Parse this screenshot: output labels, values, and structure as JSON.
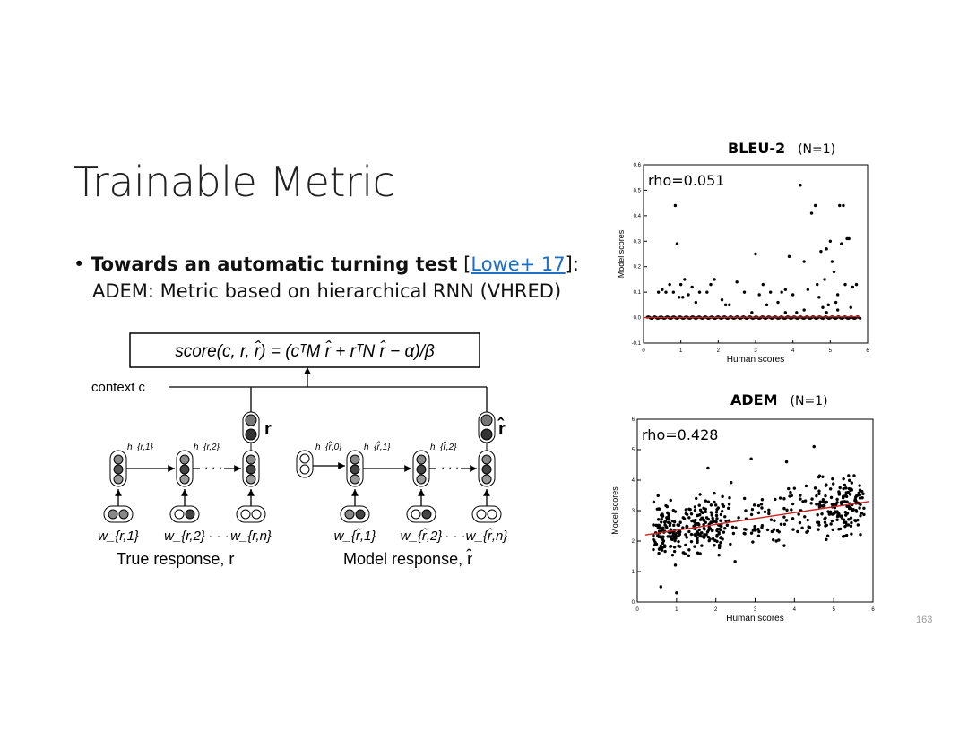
{
  "slide": {
    "title": "Trainable Metric",
    "bullet_bold": "Towards an automatic turning test",
    "bullet_bracket_open": "[",
    "bullet_link": "Lowe+ 17",
    "bullet_bracket_close": "]:",
    "bullet_line2": "ADEM: Metric based on hierarchical RNN (VHRED)",
    "slide_number": "163"
  },
  "diagram": {
    "formula": "score(c, r, r̂) = (cᵀM r̂ + rᵀN r̂ − α)/β",
    "context_label": "context c",
    "r_label": "r",
    "rhat_label": "r̂",
    "h_labels": [
      "h_{r,1}",
      "h_{r,2}",
      "h_{r̂,0}",
      "h_{r̂,1}",
      "h_{r̂,2}"
    ],
    "w_labels": [
      "w_{r,1}",
      "w_{r,2}",
      "w_{r,n}",
      "w_{r̂,1}",
      "w_{r̂,2}",
      "w_{r̂,n}"
    ],
    "true_caption": "True response, r",
    "model_caption": "Model response, r̂"
  },
  "chart_data": [
    {
      "type": "scatter",
      "title": "BLEU-2",
      "subtitle": "(N=1)",
      "annotation": "rho=0.051",
      "xlabel": "Human scores",
      "ylabel": "Model scores",
      "xlim": [
        0,
        6
      ],
      "ylim": [
        -0.1,
        0.6
      ],
      "xticks": [
        0,
        1,
        2,
        3,
        4,
        5,
        6
      ],
      "yticks": [
        -0.1,
        0.0,
        0.1,
        0.2,
        0.3,
        0.4,
        0.5,
        0.6
      ],
      "fit_line": [
        [
          0,
          0.0
        ],
        [
          5.8,
          0.003
        ]
      ],
      "colors": {
        "points": "#000000",
        "fit": "#cc2222"
      },
      "points": [
        [
          0.4,
          0.1
        ],
        [
          0.5,
          0.11
        ],
        [
          0.6,
          0.1
        ],
        [
          0.7,
          0.13
        ],
        [
          0.8,
          0.1
        ],
        [
          0.85,
          0.44
        ],
        [
          0.9,
          0.29
        ],
        [
          0.95,
          0.08
        ],
        [
          1.0,
          0.13
        ],
        [
          1.05,
          0.08
        ],
        [
          1.1,
          0.15
        ],
        [
          1.2,
          0.09
        ],
        [
          1.3,
          0.12
        ],
        [
          1.4,
          0.06
        ],
        [
          1.5,
          0.1
        ],
        [
          1.7,
          0.1
        ],
        [
          1.8,
          0.13
        ],
        [
          1.9,
          0.15
        ],
        [
          2.1,
          0.07
        ],
        [
          2.2,
          0.05
        ],
        [
          2.3,
          0.05
        ],
        [
          2.5,
          0.14
        ],
        [
          2.7,
          0.1
        ],
        [
          3.0,
          0.25
        ],
        [
          3.1,
          0.09
        ],
        [
          3.2,
          0.13
        ],
        [
          3.3,
          0.05
        ],
        [
          3.4,
          0.1
        ],
        [
          3.6,
          0.06
        ],
        [
          3.7,
          0.1
        ],
        [
          3.8,
          0.11
        ],
        [
          3.9,
          0.24
        ],
        [
          4.0,
          0.09
        ],
        [
          4.1,
          0.02
        ],
        [
          4.2,
          0.52
        ],
        [
          4.3,
          0.22
        ],
        [
          4.4,
          0.11
        ],
        [
          4.5,
          0.41
        ],
        [
          4.6,
          0.44
        ],
        [
          4.65,
          0.13
        ],
        [
          4.7,
          0.08
        ],
        [
          4.75,
          0.26
        ],
        [
          4.8,
          0.04
        ],
        [
          4.85,
          0.15
        ],
        [
          4.9,
          0.27
        ],
        [
          4.95,
          0.05
        ],
        [
          5.0,
          0.3
        ],
        [
          5.05,
          0.22
        ],
        [
          5.1,
          0.18
        ],
        [
          5.15,
          0.06
        ],
        [
          5.2,
          0.09
        ],
        [
          5.25,
          0.44
        ],
        [
          5.3,
          0.29
        ],
        [
          5.35,
          0.44
        ],
        [
          5.4,
          0.13
        ],
        [
          5.45,
          0.31
        ],
        [
          5.5,
          0.31
        ],
        [
          5.55,
          0.04
        ],
        [
          5.6,
          0.12
        ],
        [
          5.7,
          0.13
        ],
        [
          5.2,
          0.03
        ],
        [
          4.9,
          0.02
        ],
        [
          4.3,
          0.03
        ],
        [
          3.8,
          0.02
        ],
        [
          2.9,
          0.02
        ]
      ],
      "zero_cluster_x": [
        0.1,
        5.8
      ]
    },
    {
      "type": "scatter",
      "title": "ADEM",
      "subtitle": "(N=1)",
      "annotation": "rho=0.428",
      "xlabel": "Human scores",
      "ylabel": "Model scores",
      "xlim": [
        0,
        6
      ],
      "ylim": [
        0,
        6
      ],
      "xticks": [
        0,
        1,
        2,
        3,
        4,
        5,
        6
      ],
      "yticks": [
        0,
        1,
        2,
        3,
        4,
        5,
        6
      ],
      "fit_line": [
        [
          0.2,
          2.2
        ],
        [
          5.9,
          3.3
        ]
      ],
      "colors": {
        "points": "#000000",
        "fit": "#cc2222"
      },
      "points": []
    }
  ]
}
